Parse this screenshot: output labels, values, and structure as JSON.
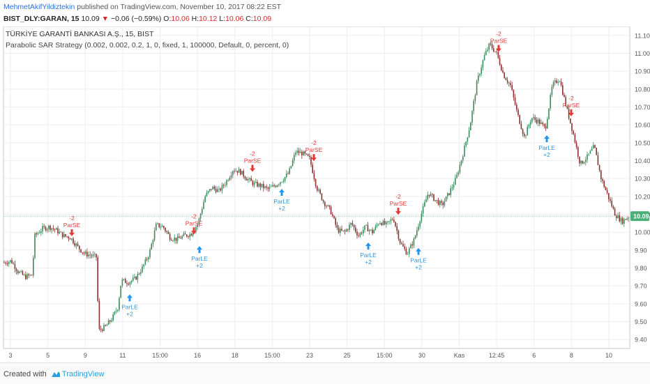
{
  "header": {
    "author": "MehmetAkifYildiztekin",
    "published_text": "published on TradingView.com, November 10, 2017 08:22 EST",
    "symbol": "BIST_DLY:GARAN, 15",
    "last": "10.09",
    "down_arrow": "▼",
    "change": "−0.06 (−0.59%)",
    "o_label": "O:",
    "o_value": "10.06",
    "h_label": "H:",
    "h_value": "10.12",
    "l_label": "L:",
    "l_value": "10.06",
    "c_label": "C:",
    "c_value": "10.09"
  },
  "legend": {
    "title": "TÜRKİYE GARANTİ BANKASI A.Ş., 15, BIST",
    "strategy": "Parabolic SAR Strategy (0.002, 0.002, 0.2, 1, 0, fixed, 1, 100000, Default, 0, percent, 0)"
  },
  "footer": {
    "created_with": "Created with",
    "brand": "TradingView"
  },
  "colors": {
    "up": "#3b8a5a",
    "down": "#8b2f2f",
    "long_signal": "#2196f3",
    "short_signal": "#e53935",
    "last_price_tag": "#4caf78"
  },
  "chart_data": {
    "type": "candlestick",
    "title": "TÜRKİYE GARANTİ BANKASI A.Ş., 15, BIST",
    "ylim": [
      9.35,
      11.15
    ],
    "y_ticks": [
      "9.40",
      "9.50",
      "9.60",
      "9.70",
      "9.80",
      "9.90",
      "10.00",
      "10.10",
      "10.20",
      "10.30",
      "10.40",
      "10.50",
      "10.60",
      "10.70",
      "10.80",
      "10.90",
      "11.00",
      "11.10"
    ],
    "x_ticks": [
      "3",
      "5",
      "9",
      "11",
      "15:00",
      "16",
      "18",
      "15:00",
      "23",
      "25",
      "15:00",
      "30",
      "Kas",
      "12:45",
      "6",
      "8",
      "10"
    ],
    "last_price": "10.09",
    "price_path": [
      {
        "x": 0,
        "y": 9.83
      },
      {
        "x": 10,
        "y": 9.84
      },
      {
        "x": 20,
        "y": 9.78
      },
      {
        "x": 30,
        "y": 9.75
      },
      {
        "x": 40,
        "y": 9.76
      },
      {
        "x": 44,
        "y": 9.98
      },
      {
        "x": 55,
        "y": 10.02
      },
      {
        "x": 65,
        "y": 10.03
      },
      {
        "x": 75,
        "y": 10.01
      },
      {
        "x": 85,
        "y": 9.98
      },
      {
        "x": 95,
        "y": 9.97
      },
      {
        "x": 105,
        "y": 9.92
      },
      {
        "x": 115,
        "y": 9.88
      },
      {
        "x": 125,
        "y": 9.87
      },
      {
        "x": 133,
        "y": 9.86
      },
      {
        "x": 135,
        "y": 9.45
      },
      {
        "x": 145,
        "y": 9.47
      },
      {
        "x": 155,
        "y": 9.52
      },
      {
        "x": 163,
        "y": 9.58
      },
      {
        "x": 168,
        "y": 9.73
      },
      {
        "x": 178,
        "y": 9.72
      },
      {
        "x": 188,
        "y": 9.74
      },
      {
        "x": 198,
        "y": 9.8
      },
      {
        "x": 208,
        "y": 9.88
      },
      {
        "x": 218,
        "y": 10.04
      },
      {
        "x": 228,
        "y": 10.03
      },
      {
        "x": 238,
        "y": 9.97
      },
      {
        "x": 248,
        "y": 9.96
      },
      {
        "x": 258,
        "y": 9.98
      },
      {
        "x": 268,
        "y": 9.99
      },
      {
        "x": 278,
        "y": 10.05
      },
      {
        "x": 288,
        "y": 10.2
      },
      {
        "x": 298,
        "y": 10.25
      },
      {
        "x": 308,
        "y": 10.23
      },
      {
        "x": 318,
        "y": 10.28
      },
      {
        "x": 328,
        "y": 10.35
      },
      {
        "x": 338,
        "y": 10.34
      },
      {
        "x": 348,
        "y": 10.3
      },
      {
        "x": 358,
        "y": 10.27
      },
      {
        "x": 368,
        "y": 10.26
      },
      {
        "x": 378,
        "y": 10.24
      },
      {
        "x": 388,
        "y": 10.26
      },
      {
        "x": 398,
        "y": 10.29
      },
      {
        "x": 408,
        "y": 10.33
      },
      {
        "x": 418,
        "y": 10.45
      },
      {
        "x": 428,
        "y": 10.44
      },
      {
        "x": 438,
        "y": 10.41
      },
      {
        "x": 448,
        "y": 10.25
      },
      {
        "x": 458,
        "y": 10.17
      },
      {
        "x": 468,
        "y": 10.12
      },
      {
        "x": 478,
        "y": 10.01
      },
      {
        "x": 488,
        "y": 10.0
      },
      {
        "x": 498,
        "y": 10.05
      },
      {
        "x": 508,
        "y": 9.98
      },
      {
        "x": 518,
        "y": 10.03
      },
      {
        "x": 528,
        "y": 10.0
      },
      {
        "x": 538,
        "y": 10.06
      },
      {
        "x": 548,
        "y": 10.04
      },
      {
        "x": 558,
        "y": 10.08
      },
      {
        "x": 568,
        "y": 9.94
      },
      {
        "x": 578,
        "y": 9.88
      },
      {
        "x": 588,
        "y": 9.96
      },
      {
        "x": 598,
        "y": 10.1
      },
      {
        "x": 608,
        "y": 10.22
      },
      {
        "x": 618,
        "y": 10.18
      },
      {
        "x": 628,
        "y": 10.15
      },
      {
        "x": 638,
        "y": 10.22
      },
      {
        "x": 648,
        "y": 10.3
      },
      {
        "x": 658,
        "y": 10.44
      },
      {
        "x": 668,
        "y": 10.6
      },
      {
        "x": 678,
        "y": 10.84
      },
      {
        "x": 688,
        "y": 10.98
      },
      {
        "x": 696,
        "y": 11.05
      },
      {
        "x": 706,
        "y": 11.0
      },
      {
        "x": 716,
        "y": 10.88
      },
      {
        "x": 726,
        "y": 10.82
      },
      {
        "x": 736,
        "y": 10.66
      },
      {
        "x": 746,
        "y": 10.53
      },
      {
        "x": 756,
        "y": 10.64
      },
      {
        "x": 766,
        "y": 10.62
      },
      {
        "x": 776,
        "y": 10.58
      },
      {
        "x": 786,
        "y": 10.82
      },
      {
        "x": 796,
        "y": 10.86
      },
      {
        "x": 806,
        "y": 10.7
      },
      {
        "x": 816,
        "y": 10.55
      },
      {
        "x": 826,
        "y": 10.38
      },
      {
        "x": 836,
        "y": 10.42
      },
      {
        "x": 846,
        "y": 10.48
      },
      {
        "x": 856,
        "y": 10.3
      },
      {
        "x": 866,
        "y": 10.2
      },
      {
        "x": 876,
        "y": 10.1
      },
      {
        "x": 886,
        "y": 10.06
      },
      {
        "x": 896,
        "y": 10.09
      }
    ],
    "signals": [
      {
        "type": "short",
        "label": "ParSE",
        "qty": "-2",
        "x": 98,
        "y": 9.97
      },
      {
        "type": "long",
        "label": "ParLE",
        "qty": "+2",
        "x": 181,
        "y": 9.66
      },
      {
        "type": "short",
        "label": "ParSE",
        "qty": "-2",
        "x": 273,
        "y": 9.98
      },
      {
        "type": "long",
        "label": "ParLE",
        "qty": "+2",
        "x": 281,
        "y": 9.93
      },
      {
        "type": "short",
        "label": "ParSE",
        "qty": "-2",
        "x": 357,
        "y": 10.33
      },
      {
        "type": "long",
        "label": "ParLE",
        "qty": "+2",
        "x": 399,
        "y": 10.25
      },
      {
        "type": "short",
        "label": "ParSE",
        "qty": "-2",
        "x": 445,
        "y": 10.39
      },
      {
        "type": "long",
        "label": "ParLE",
        "qty": "+2",
        "x": 523,
        "y": 9.95
      },
      {
        "type": "short",
        "label": "ParSE",
        "qty": "-2",
        "x": 566,
        "y": 10.09
      },
      {
        "type": "long",
        "label": "ParLE",
        "qty": "+2",
        "x": 595,
        "y": 9.92
      },
      {
        "type": "short",
        "label": "ParSE",
        "qty": "-2",
        "x": 710,
        "y": 11.0
      },
      {
        "type": "long",
        "label": "ParLE",
        "qty": "+2",
        "x": 779,
        "y": 10.55
      },
      {
        "type": "short",
        "label": "ParSE",
        "qty": "-2",
        "x": 814,
        "y": 10.64
      }
    ]
  }
}
